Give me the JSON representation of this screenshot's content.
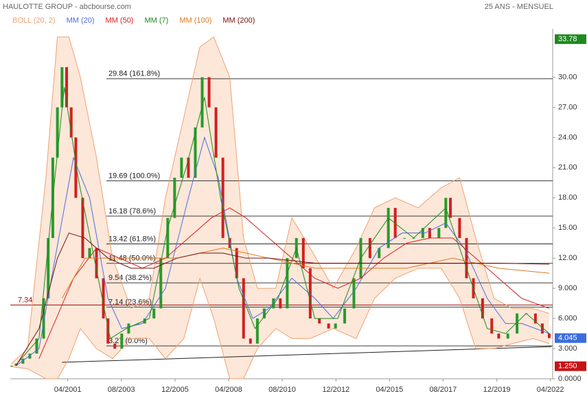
{
  "chart_data": {
    "type": "line",
    "title": "HAULOTTE GROUP - abcbourse.com",
    "subtitle": "25 ANS - MENSUEL",
    "xlim": [
      1998.75,
      2022.35
    ],
    "xticks": [
      {
        "value": 2001.25,
        "label": "04/2001"
      },
      {
        "value": 2003.58,
        "label": "08/2003"
      },
      {
        "value": 2005.92,
        "label": "12/2005"
      },
      {
        "value": 2008.25,
        "label": "04/2008"
      },
      {
        "value": 2010.58,
        "label": "08/2010"
      },
      {
        "value": 2012.92,
        "label": "12/2012"
      },
      {
        "value": 2015.25,
        "label": "04/2015"
      },
      {
        "value": 2017.58,
        "label": "08/2017"
      },
      {
        "value": 2019.92,
        "label": "12/2019"
      },
      {
        "value": 2022.25,
        "label": "04/2022"
      }
    ],
    "ylim": [
      0,
      34.4
    ],
    "yticks": [
      {
        "value": 0,
        "label": "0.0000"
      },
      {
        "value": 3,
        "label": "3.000"
      },
      {
        "value": 6,
        "label": "6.000"
      },
      {
        "value": 9,
        "label": "9.000"
      },
      {
        "value": 12,
        "label": "12.00"
      },
      {
        "value": 15,
        "label": "15.00"
      },
      {
        "value": 18,
        "label": "18.00"
      },
      {
        "value": 21,
        "label": "21.00"
      },
      {
        "value": 24,
        "label": "24.00"
      },
      {
        "value": 27,
        "label": "27.00"
      },
      {
        "value": 30,
        "label": "30.00"
      }
    ],
    "close": {
      "color": "#2a9a2a",
      "x": [
        1998.8,
        1999.0,
        1999.3,
        1999.6,
        1999.9,
        2000.2,
        2000.4,
        2000.6,
        2000.8,
        2001.0,
        2001.2,
        2001.4,
        2001.6,
        2001.9,
        2002.2,
        2002.5,
        2002.8,
        2003.0,
        2003.3,
        2003.6,
        2003.9,
        2004.3,
        2004.6,
        2005.0,
        2005.3,
        2005.6,
        2005.9,
        2006.2,
        2006.5,
        2006.8,
        2007.1,
        2007.4,
        2007.7,
        2008.0,
        2008.3,
        2008.6,
        2008.9,
        2009.2,
        2009.5,
        2009.8,
        2010.2,
        2010.5,
        2010.8,
        2011.2,
        2011.5,
        2011.8,
        2012.2,
        2012.6,
        2012.9,
        2013.3,
        2013.7,
        2014.0,
        2014.4,
        2014.8,
        2015.2,
        2015.5,
        2015.9,
        2016.3,
        2016.7,
        2017.0,
        2017.4,
        2017.7,
        2017.9,
        2018.3,
        2018.6,
        2018.9,
        2019.3,
        2019.7,
        2020.0,
        2020.4,
        2020.8,
        2021.2,
        2021.6,
        2021.9,
        2022.2
      ],
      "values": [
        1.3,
        1.5,
        2.0,
        2.5,
        4,
        8,
        14,
        22,
        27,
        31,
        27,
        24,
        18,
        12,
        13,
        10,
        6,
        3.5,
        3,
        4.5,
        5.5,
        5.5,
        6,
        7,
        12,
        16,
        20,
        22,
        20,
        25,
        30,
        27,
        22,
        14,
        13,
        10,
        4,
        3.5,
        6,
        7,
        8,
        7,
        12,
        14,
        11,
        6,
        5.5,
        5,
        5.5,
        7,
        10,
        14,
        12,
        13,
        17,
        14,
        14,
        14,
        15,
        14,
        15,
        18,
        16,
        14,
        10,
        8,
        6,
        4.5,
        4,
        4.5,
        6.5,
        6.5,
        5.5,
        4.5,
        4.045
      ]
    },
    "series": [
      {
        "name": "BOLL (20, 2)",
        "color": "#f0a070",
        "x": [
          1998.8,
          1999.5,
          2000.3,
          2000.8,
          2001.3,
          2001.8,
          2002.5,
          2003.2,
          2004,
          2004.8,
          2005.5,
          2006.3,
          2007,
          2007.6,
          2008.3,
          2008.9,
          2009.5,
          2010.3,
          2011,
          2011.8,
          2012.8,
          2013.8,
          2014.6,
          2015.5,
          2016.5,
          2017.5,
          2018.3,
          2019,
          2019.8,
          2020.6,
          2021.5,
          2022.2
        ],
        "values": [
          1.5,
          3,
          20,
          34,
          34,
          30,
          22,
          12,
          7,
          8,
          18,
          26,
          33,
          34,
          30,
          14,
          9,
          9,
          16,
          13,
          9,
          13,
          17,
          18,
          17,
          19,
          20,
          14,
          8,
          7,
          7,
          6.5
        ],
        "lower": [
          1.2,
          1,
          0,
          0,
          2,
          5,
          3,
          2,
          4,
          4,
          2,
          4,
          10,
          6,
          0,
          0,
          3,
          5,
          4,
          4,
          5,
          4,
          8,
          10,
          11,
          11,
          8,
          3,
          3,
          3.5,
          4,
          3.5
        ]
      },
      {
        "name": "MM (20)",
        "color": "#4a6ee0",
        "x": [
          1999,
          2000,
          2000.7,
          2001.5,
          2002.2,
          2003.0,
          2003.6,
          2004.5,
          2005.5,
          2006.5,
          2007.2,
          2007.8,
          2008.6,
          2009.3,
          2010,
          2011,
          2012,
          2012.8,
          2013.8,
          2014.8,
          2015.8,
          2016.8,
          2017.7,
          2018.5,
          2019.5,
          2020.3,
          2021,
          2022.2
        ],
        "values": [
          1.3,
          3,
          12,
          22,
          18,
          8,
          5,
          5.5,
          9,
          18,
          24,
          20,
          10,
          6,
          7,
          10,
          8,
          6,
          9,
          13,
          14.5,
          14.5,
          15.5,
          13,
          8,
          5.5,
          5.5,
          4.5
        ]
      },
      {
        "name": "MM (50)",
        "color": "#d82020",
        "x": [
          2000,
          2001.5,
          2002.5,
          2003.5,
          2004.5,
          2005.5,
          2006.5,
          2007.5,
          2008.3,
          2009,
          2010,
          2011,
          2012,
          2013,
          2014,
          2015,
          2016,
          2017,
          2018,
          2019,
          2020,
          2021,
          2022.2
        ],
        "values": [
          2,
          10,
          13,
          12,
          11,
          12,
          14,
          16,
          17,
          16,
          14,
          12,
          10,
          9,
          10,
          12,
          13.5,
          14,
          14,
          12,
          10,
          8,
          7
        ]
      },
      {
        "name": "MM (7)",
        "color": "#1a8a1a",
        "x": [
          1999,
          2000,
          2000.6,
          2001.1,
          2001.7,
          2002.4,
          2003.1,
          2003.8,
          2004.8,
          2005.6,
          2006.4,
          2007.2,
          2007.9,
          2008.7,
          2009.4,
          2010.4,
          2011.2,
          2012.0,
          2013.0,
          2014.0,
          2015.2,
          2016.3,
          2017.7,
          2018.6,
          2019.5,
          2020.3,
          2021.2,
          2022.2
        ],
        "values": [
          1.4,
          4,
          18,
          29,
          20,
          12,
          4,
          5,
          6,
          15,
          21,
          28,
          18,
          9,
          5,
          8,
          13,
          6,
          6,
          12,
          16,
          14,
          17,
          11,
          5,
          4.5,
          6.5,
          4.5
        ]
      },
      {
        "name": "MM (100)",
        "color": "#e07820",
        "x": [
          2001,
          2002,
          2004,
          2006,
          2008,
          2010,
          2012,
          2014,
          2016,
          2018,
          2020,
          2022.2
        ],
        "values": [
          8,
          12,
          12,
          12,
          13,
          12,
          11,
          11,
          11,
          12,
          11,
          10.5
        ]
      },
      {
        "name": "MM (200)",
        "color": "#7a1010",
        "x": [
          1999,
          2000,
          2000.8,
          2001.3,
          2002,
          2003,
          2004,
          2005,
          2006,
          2007,
          2008,
          2009,
          2010,
          2012,
          2014,
          2016,
          2018,
          2020,
          2022.2
        ],
        "values": [
          1.3,
          5,
          12,
          14.5,
          14,
          12,
          11,
          11,
          12,
          12.5,
          12.5,
          12,
          12,
          11.5,
          11.5,
          11.5,
          11.5,
          11.5,
          11.4
        ]
      }
    ],
    "fibonacci": [
      {
        "value": 29.84,
        "label": "29.84  (161.8%)"
      },
      {
        "value": 19.69,
        "label": "19.69  (100.0%)"
      },
      {
        "value": 16.18,
        "label": "16.18  (78.6%)"
      },
      {
        "value": 13.42,
        "label": "13.42  (61.8%)"
      },
      {
        "value": 11.48,
        "label": "11.48  (50.0%)"
      },
      {
        "value": 9.54,
        "label": "9.54  (38.2%)"
      },
      {
        "value": 7.14,
        "label": "7.14  (23.6%)"
      },
      {
        "value": 3.27,
        "label": "3.27  (0.0%)"
      }
    ],
    "reference_line": {
      "value": 7.34,
      "color": "#a01010"
    },
    "trendline": {
      "x": [
        2001.0,
        2022.3
      ],
      "values": [
        1.64,
        3.2
      ]
    },
    "badges": [
      {
        "value": 33.78,
        "color": "#1e8a1e"
      },
      {
        "value": 4.045,
        "color": "#3a6ee0"
      },
      {
        "value": {
          "value": 1.25,
          "label": "1.250"
        },
        "color": "#c81414"
      }
    ]
  }
}
